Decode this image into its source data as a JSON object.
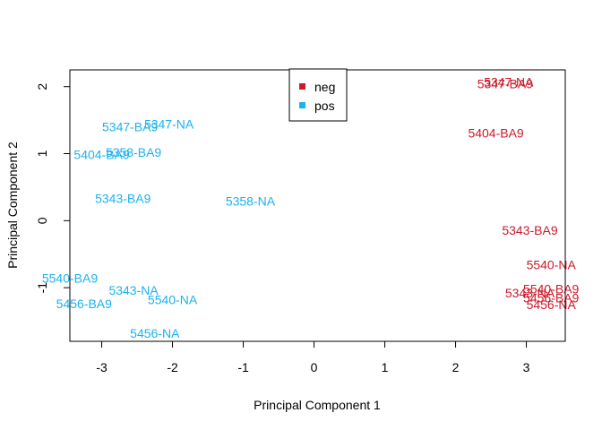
{
  "chart_data": {
    "type": "scatter",
    "xlabel": "Principal Component 1",
    "ylabel": "Principal Component 2",
    "xlim": [
      -3.45,
      3.55
    ],
    "ylim": [
      -1.8,
      2.25
    ],
    "xticks": [
      -3,
      -2,
      -1,
      0,
      1,
      2,
      3
    ],
    "yticks": [
      -1,
      0,
      1,
      2
    ],
    "legend": {
      "position": "top-center",
      "entries": [
        {
          "name": "neg",
          "color": "#cc1a2b"
        },
        {
          "name": "pos",
          "color": "#1ab2f0"
        }
      ]
    },
    "series": [
      {
        "name": "neg",
        "color": "#cc1a2b",
        "points": [
          {
            "label": "5347-NA",
            "x": 2.75,
            "y": 2.07
          },
          {
            "label": "5347-BA9",
            "x": 2.7,
            "y": 2.04
          },
          {
            "label": "5404-BA9",
            "x": 2.57,
            "y": 1.31
          },
          {
            "label": "5343-BA9",
            "x": 3.05,
            "y": -0.14
          },
          {
            "label": "5540-NA",
            "x": 3.35,
            "y": -0.66
          },
          {
            "label": "5540-BA9",
            "x": 3.35,
            "y": -1.02
          },
          {
            "label": "5343-NA",
            "x": 3.05,
            "y": -1.08
          },
          {
            "label": "5456-BA9",
            "x": 3.35,
            "y": -1.15
          },
          {
            "label": "5456-NA",
            "x": 3.35,
            "y": -1.25
          }
        ]
      },
      {
        "name": "pos",
        "color": "#1ab2f0",
        "points": [
          {
            "label": "5347-BA9",
            "x": -2.6,
            "y": 1.4
          },
          {
            "label": "5347-NA",
            "x": -2.05,
            "y": 1.44
          },
          {
            "label": "5404-BA9",
            "x": -3.0,
            "y": 0.99
          },
          {
            "label": "5358-BA9",
            "x": -2.55,
            "y": 1.02
          },
          {
            "label": "5343-BA9",
            "x": -2.7,
            "y": 0.33
          },
          {
            "label": "5358-NA",
            "x": -0.9,
            "y": 0.29
          },
          {
            "label": "5540-BA9",
            "x": -3.45,
            "y": -0.86
          },
          {
            "label": "5343-NA",
            "x": -2.55,
            "y": -1.04
          },
          {
            "label": "5540-NA",
            "x": -2.0,
            "y": -1.18
          },
          {
            "label": "5456-BA9",
            "x": -3.25,
            "y": -1.24
          },
          {
            "label": "5456-NA",
            "x": -2.25,
            "y": -1.68
          }
        ]
      }
    ]
  }
}
